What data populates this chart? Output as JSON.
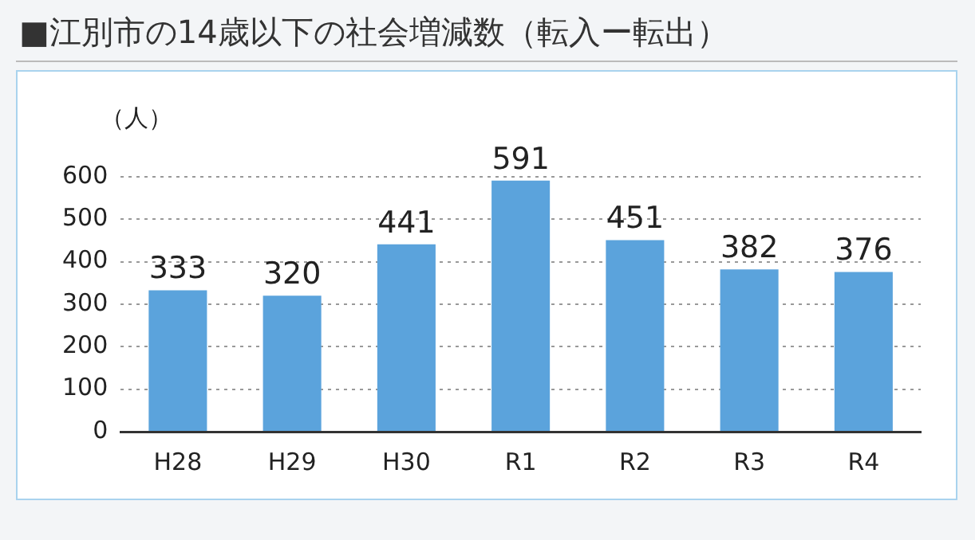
{
  "chart_data": {
    "type": "bar",
    "title": "■江別市の14歳以下の社会増減数（転入ー転出）",
    "ylabel": "（人）",
    "categories": [
      "H28",
      "H29",
      "H30",
      "R1",
      "R2",
      "R3",
      "R4"
    ],
    "values": [
      333,
      320,
      441,
      591,
      451,
      382,
      376
    ],
    "color": "#5ba3dc",
    "ylim": [
      0,
      600
    ],
    "yticks": [
      0,
      100,
      200,
      300,
      400,
      500,
      600
    ],
    "grid": "y",
    "data_labels": true
  }
}
